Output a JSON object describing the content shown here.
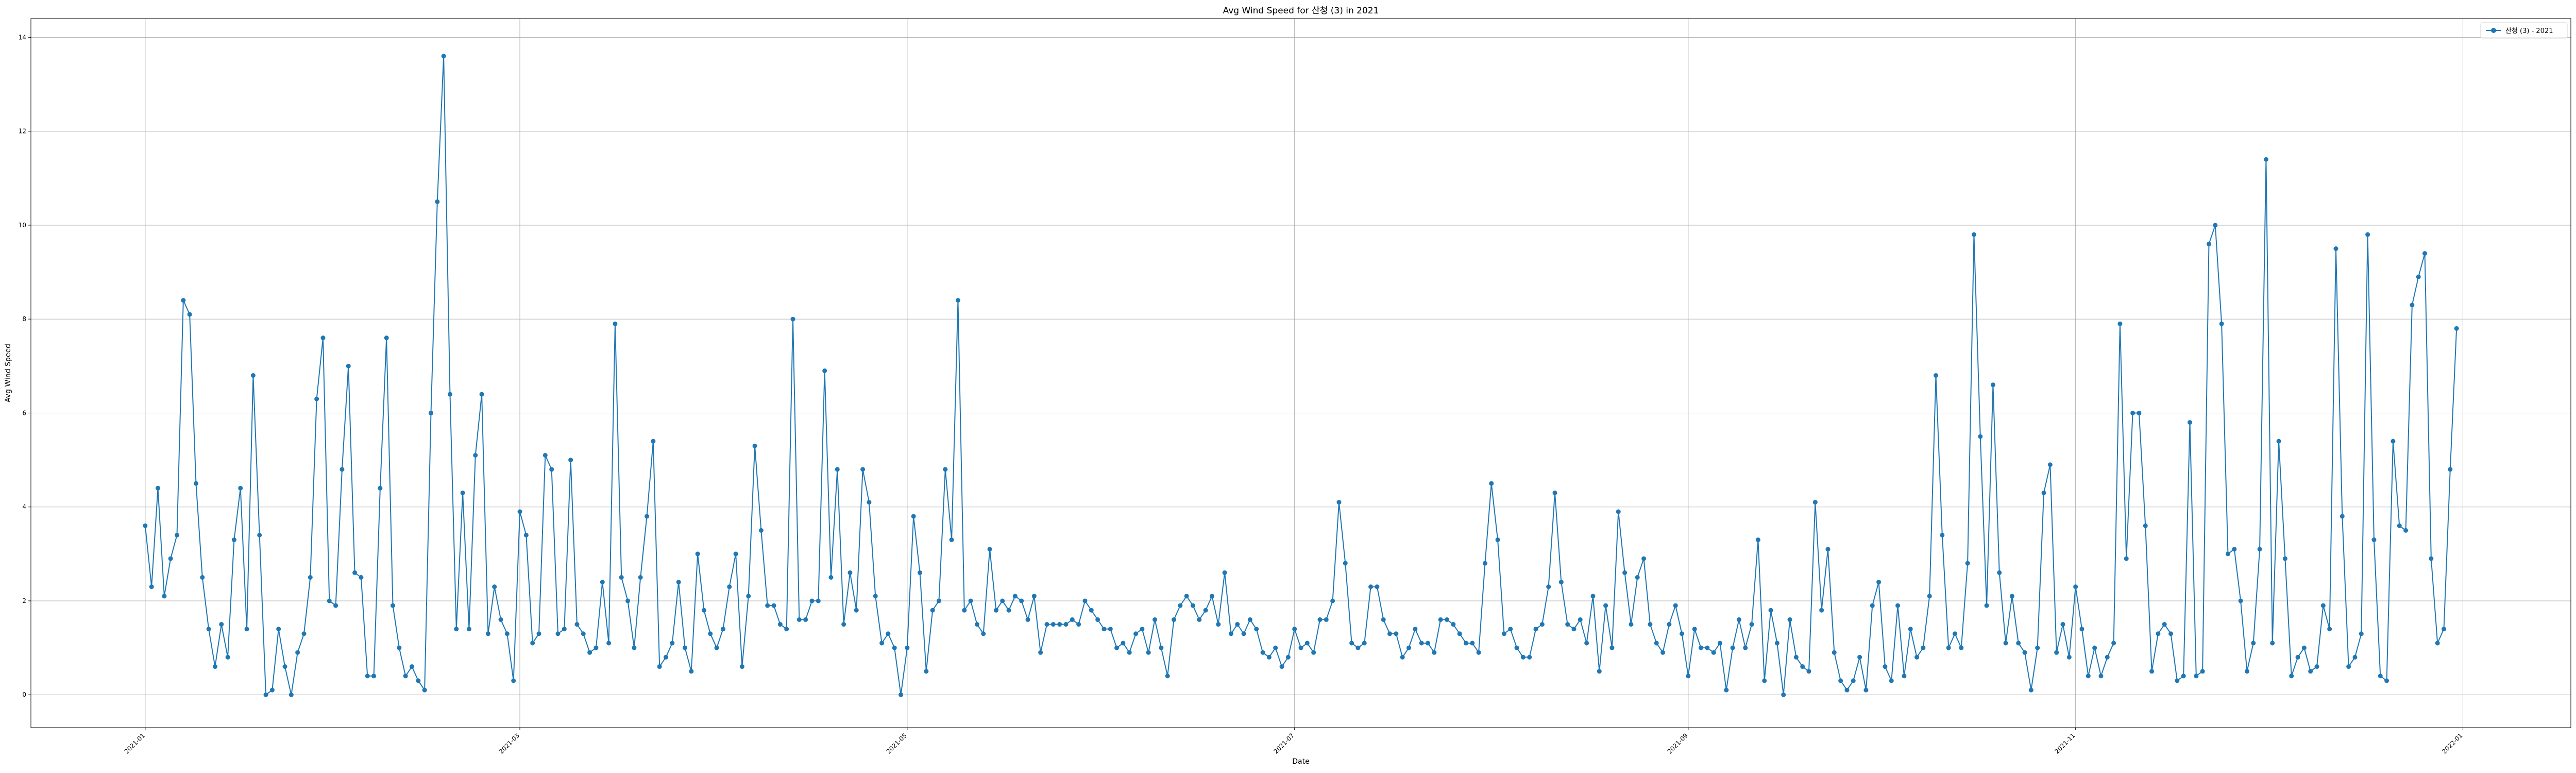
{
  "chart_data": {
    "type": "line",
    "title": "Avg Wind Speed for 산청 (3) in 2021",
    "xlabel": "Date",
    "ylabel": "Avg Wind Speed",
    "xlim": [
      "2020-12-14",
      "2022-01-18"
    ],
    "ylim": [
      -0.7,
      14.4
    ],
    "yticks": [
      0,
      2,
      4,
      6,
      8,
      10,
      12,
      14
    ],
    "xticks": [
      "2021-01",
      "2021-03",
      "2021-05",
      "2021-07",
      "2021-09",
      "2021-11",
      "2022-01"
    ],
    "grid": true,
    "legend_position": "top-right",
    "colors": {
      "line": "#1f77b4"
    },
    "series": [
      {
        "name": "산청 (3) - 2021",
        "start_date": "2021-01-01",
        "values": [
          3.6,
          2.3,
          4.4,
          2.1,
          2.9,
          3.4,
          8.4,
          8.1,
          4.5,
          2.5,
          1.4,
          0.6,
          1.5,
          0.8,
          3.3,
          4.4,
          1.4,
          6.8,
          3.4,
          0.0,
          0.1,
          1.4,
          0.6,
          0.0,
          0.9,
          1.3,
          2.5,
          6.3,
          7.6,
          2.0,
          1.9,
          4.8,
          7.0,
          2.6,
          2.5,
          0.4,
          0.4,
          4.4,
          7.6,
          1.9,
          1.0,
          0.4,
          0.6,
          0.3,
          0.1,
          6.0,
          10.5,
          13.6,
          6.4,
          1.4,
          4.3,
          1.4,
          5.1,
          6.4,
          1.3,
          2.3,
          1.6,
          1.3,
          0.3,
          3.9,
          3.4,
          1.1,
          1.3,
          5.1,
          4.8,
          1.3,
          1.4,
          5.0,
          1.5,
          1.3,
          0.9,
          1.0,
          2.4,
          1.1,
          7.9,
          2.5,
          2.0,
          1.0,
          2.5,
          3.8,
          5.4,
          0.6,
          0.8,
          1.1,
          2.4,
          1.0,
          0.5,
          3.0,
          1.8,
          1.3,
          1.0,
          1.4,
          2.3,
          3.0,
          0.6,
          2.1,
          5.3,
          3.5,
          1.9,
          1.9,
          1.5,
          1.4,
          8.0,
          1.6,
          1.6,
          2.0,
          2.0,
          6.9,
          2.5,
          4.8,
          1.5,
          2.6,
          1.8,
          4.8,
          4.1,
          2.1,
          1.1,
          1.3,
          1.0,
          0.0,
          1.0,
          3.8,
          2.6,
          0.5,
          1.8,
          2.0,
          4.8,
          3.3,
          8.4,
          1.8,
          2.0,
          1.5,
          1.3,
          3.1,
          1.8,
          2.0,
          1.8,
          2.1,
          2.0,
          1.6,
          2.1,
          0.9,
          1.5,
          1.5,
          1.5,
          1.5,
          1.6,
          1.5,
          2.0,
          1.8,
          1.6,
          1.4,
          1.4,
          1.0,
          1.1,
          0.9,
          1.3,
          1.4,
          0.9,
          1.6,
          1.0,
          0.4,
          1.6,
          1.9,
          2.1,
          1.9,
          1.6,
          1.8,
          2.1,
          1.5,
          2.6,
          1.3,
          1.5,
          1.3,
          1.6,
          1.4,
          0.9,
          0.8,
          1.0,
          0.6,
          0.8,
          1.4,
          1.0,
          1.1,
          0.9,
          1.6,
          1.6,
          2.0,
          4.1,
          2.8,
          1.1,
          1.0,
          1.1,
          2.3,
          2.3,
          1.6,
          1.3,
          1.3,
          0.8,
          1.0,
          1.4,
          1.1,
          1.1,
          0.9,
          1.6,
          1.6,
          1.5,
          1.3,
          1.1,
          1.1,
          0.9,
          2.8,
          4.5,
          3.3,
          1.3,
          1.4,
          1.0,
          0.8,
          0.8,
          1.4,
          1.5,
          2.3,
          4.3,
          2.4,
          1.5,
          1.4,
          1.6,
          1.1,
          2.1,
          0.5,
          1.9,
          1.0,
          3.9,
          2.6,
          1.5,
          2.5,
          2.9,
          1.5,
          1.1,
          0.9,
          1.5,
          1.9,
          1.3,
          0.4,
          1.4,
          1.0,
          1.0,
          0.9,
          1.1,
          0.1,
          1.0,
          1.6,
          1.0,
          1.5,
          3.3,
          0.3,
          1.8,
          1.1,
          0.0,
          1.6,
          0.8,
          0.6,
          0.5,
          4.1,
          1.8,
          3.1,
          0.9,
          0.3,
          0.1,
          0.3,
          0.8,
          0.1,
          1.9,
          2.4,
          0.6,
          0.3,
          1.9,
          0.4,
          1.4,
          0.8,
          1.0,
          2.1,
          6.8,
          3.4,
          1.0,
          1.3,
          1.0,
          2.8,
          9.8,
          5.5,
          1.9,
          6.6,
          2.6,
          1.1,
          2.1,
          1.1,
          0.9,
          0.1,
          1.0,
          4.3,
          4.9,
          0.9,
          1.5,
          0.8,
          2.3,
          1.4,
          0.4,
          1.0,
          0.4,
          0.8,
          1.1,
          7.9,
          2.9,
          6.0,
          6.0,
          3.6,
          0.5,
          1.3,
          1.5,
          1.3,
          0.3,
          0.4,
          5.8,
          0.4,
          0.5,
          9.6,
          10.0,
          7.9,
          3.0,
          3.1,
          2.0,
          0.5,
          1.1,
          3.1,
          11.4,
          1.1,
          5.4,
          2.9,
          0.4,
          0.8,
          1.0,
          0.5,
          0.6,
          1.9,
          1.4,
          9.5,
          3.8,
          0.6,
          0.8,
          1.3,
          9.8,
          3.3,
          0.4,
          0.3,
          5.4,
          3.6,
          3.5,
          8.3,
          8.9,
          9.4,
          2.9,
          1.1,
          1.4,
          4.8,
          7.8
        ]
      }
    ]
  }
}
